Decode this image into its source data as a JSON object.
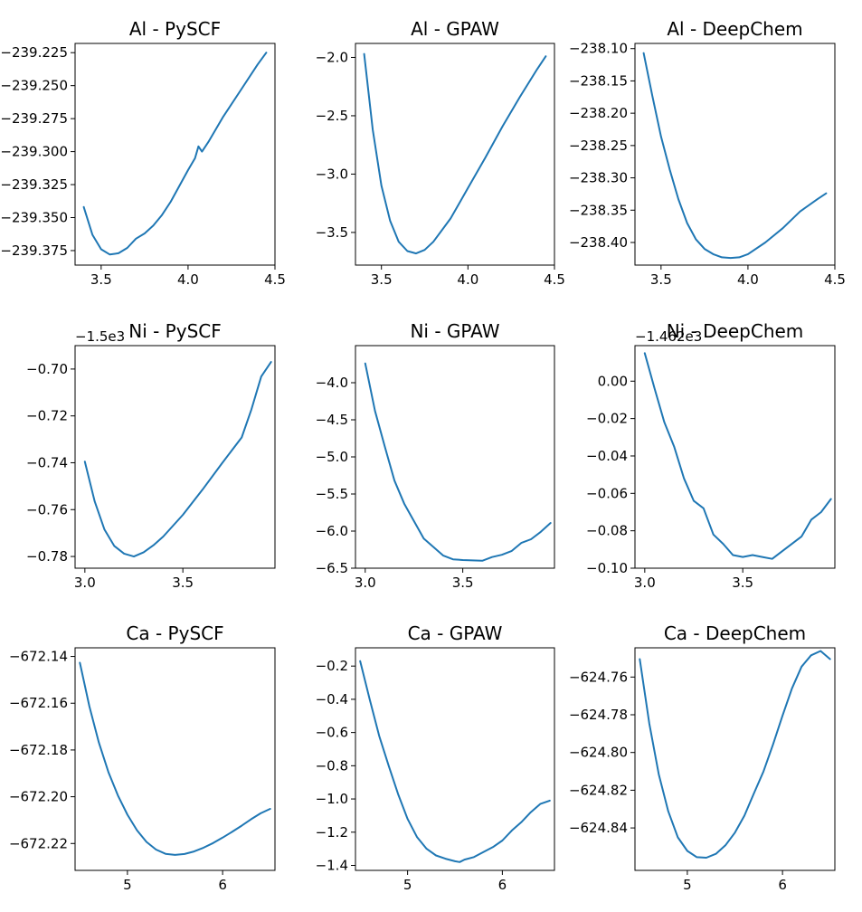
{
  "chart_data": [
    {
      "type": "line",
      "title": "Al - PySCF",
      "offset_text": "",
      "xlim": [
        3.35,
        4.5
      ],
      "ylim": [
        -239.386,
        -239.218
      ],
      "xticks": [
        3.5,
        4.0,
        4.5
      ],
      "xtick_labels": [
        "3.5",
        "4.0",
        "4.5"
      ],
      "yticks": [
        -239.225,
        -239.25,
        -239.275,
        -239.3,
        -239.325,
        -239.35,
        -239.375
      ],
      "ytick_labels": [
        "−239.225",
        "−239.250",
        "−239.275",
        "−239.300",
        "−239.325",
        "−239.350",
        "−239.375"
      ],
      "series": [
        {
          "name": "Al - PySCF",
          "x": [
            3.4,
            3.45,
            3.5,
            3.55,
            3.6,
            3.65,
            3.7,
            3.75,
            3.8,
            3.85,
            3.9,
            3.95,
            4.0,
            4.04,
            4.06,
            4.08,
            4.12,
            4.2,
            4.3,
            4.4,
            4.45
          ],
          "y": [
            -239.342,
            -239.363,
            -239.374,
            -239.378,
            -239.377,
            -239.373,
            -239.366,
            -239.362,
            -239.356,
            -239.348,
            -239.338,
            -239.326,
            -239.314,
            -239.305,
            -239.296,
            -239.3,
            -239.292,
            -239.274,
            -239.254,
            -239.234,
            -239.225
          ]
        }
      ]
    },
    {
      "type": "line",
      "title": "Al - GPAW",
      "offset_text": "",
      "xlim": [
        3.35,
        4.5
      ],
      "ylim": [
        -3.78,
        -1.88
      ],
      "xticks": [
        3.5,
        4.0,
        4.5
      ],
      "xtick_labels": [
        "3.5",
        "4.0",
        "4.5"
      ],
      "yticks": [
        -2.0,
        -2.5,
        -3.0,
        -3.5
      ],
      "ytick_labels": [
        "−2.0",
        "−2.5",
        "−3.0",
        "−3.5"
      ],
      "series": [
        {
          "name": "Al - GPAW",
          "x": [
            3.4,
            3.45,
            3.5,
            3.55,
            3.6,
            3.65,
            3.7,
            3.75,
            3.8,
            3.9,
            4.0,
            4.1,
            4.2,
            4.3,
            4.4,
            4.45
          ],
          "y": [
            -1.97,
            -2.62,
            -3.1,
            -3.4,
            -3.58,
            -3.66,
            -3.68,
            -3.65,
            -3.58,
            -3.38,
            -3.12,
            -2.86,
            -2.59,
            -2.34,
            -2.1,
            -1.99
          ]
        }
      ]
    },
    {
      "type": "line",
      "title": "Al - DeepChem",
      "offset_text": "",
      "xlim": [
        3.35,
        4.5
      ],
      "ylim": [
        -238.435,
        -238.092
      ],
      "xticks": [
        3.5,
        4.0,
        4.5
      ],
      "xtick_labels": [
        "3.5",
        "4.0",
        "4.5"
      ],
      "yticks": [
        -238.1,
        -238.15,
        -238.2,
        -238.25,
        -238.3,
        -238.35,
        -238.4
      ],
      "ytick_labels": [
        "−238.10",
        "−238.15",
        "−238.20",
        "−238.25",
        "−238.30",
        "−238.35",
        "−238.40"
      ],
      "series": [
        {
          "name": "Al - DeepChem",
          "x": [
            3.4,
            3.45,
            3.5,
            3.55,
            3.6,
            3.65,
            3.7,
            3.75,
            3.8,
            3.85,
            3.9,
            3.95,
            4.0,
            4.1,
            4.2,
            4.3,
            4.4,
            4.45
          ],
          "y": [
            -238.107,
            -238.173,
            -238.236,
            -238.287,
            -238.333,
            -238.37,
            -238.395,
            -238.41,
            -238.418,
            -238.423,
            -238.424,
            -238.423,
            -238.418,
            -238.4,
            -238.378,
            -238.352,
            -238.333,
            -238.324
          ]
        }
      ]
    },
    {
      "type": "line",
      "title": "Ni - PySCF",
      "offset_text": "−1.5e3",
      "xlim": [
        2.95,
        3.97
      ],
      "ylim": [
        -0.785,
        -0.69
      ],
      "xticks": [
        3.0,
        3.5
      ],
      "xtick_labels": [
        "3.0",
        "3.5"
      ],
      "yticks": [
        -0.7,
        -0.72,
        -0.74,
        -0.76,
        -0.78
      ],
      "ytick_labels": [
        "−0.70",
        "−0.72",
        "−0.74",
        "−0.76",
        "−0.78"
      ],
      "series": [
        {
          "name": "Ni - PySCF",
          "x": [
            3.0,
            3.05,
            3.1,
            3.15,
            3.2,
            3.25,
            3.3,
            3.35,
            3.4,
            3.5,
            3.6,
            3.7,
            3.8,
            3.85,
            3.9,
            3.95
          ],
          "y": [
            -0.7395,
            -0.7565,
            -0.7685,
            -0.7755,
            -0.7788,
            -0.78,
            -0.7782,
            -0.7752,
            -0.7715,
            -0.7622,
            -0.7515,
            -0.7402,
            -0.7292,
            -0.7172,
            -0.7032,
            -0.697
          ]
        }
      ]
    },
    {
      "type": "line",
      "title": "Ni - GPAW",
      "offset_text": "",
      "xlim": [
        2.95,
        3.97
      ],
      "ylim": [
        -6.5,
        -3.5
      ],
      "xticks": [
        3.0,
        3.5
      ],
      "xtick_labels": [
        "3.0",
        "3.5"
      ],
      "yticks": [
        -4.0,
        -4.5,
        -5.0,
        -5.5,
        -6.0,
        -6.5
      ],
      "ytick_labels": [
        "−4.0",
        "−4.5",
        "−5.0",
        "−5.5",
        "−6.0",
        "−6.5"
      ],
      "series": [
        {
          "name": "Ni - GPAW",
          "x": [
            3.0,
            3.05,
            3.1,
            3.15,
            3.2,
            3.3,
            3.4,
            3.45,
            3.5,
            3.6,
            3.65,
            3.7,
            3.75,
            3.8,
            3.85,
            3.9,
            3.95
          ],
          "y": [
            -3.74,
            -4.38,
            -4.86,
            -5.32,
            -5.63,
            -6.1,
            -6.33,
            -6.38,
            -6.39,
            -6.4,
            -6.35,
            -6.32,
            -6.27,
            -6.16,
            -6.11,
            -6.01,
            -5.89
          ]
        }
      ]
    },
    {
      "type": "line",
      "title": "Ni - DeepChem",
      "offset_text": "−1.462e3",
      "xlim": [
        2.95,
        3.97
      ],
      "ylim": [
        -0.1,
        0.019
      ],
      "xticks": [
        3.0,
        3.5
      ],
      "xtick_labels": [
        "3.0",
        "3.5"
      ],
      "yticks": [
        0.0,
        -0.02,
        -0.04,
        -0.06,
        -0.08,
        -0.1
      ],
      "ytick_labels": [
        "0.00",
        "−0.02",
        "−0.04",
        "−0.06",
        "−0.08",
        "−0.10"
      ],
      "series": [
        {
          "name": "Ni - DeepChem",
          "x": [
            3.0,
            3.05,
            3.1,
            3.15,
            3.2,
            3.25,
            3.3,
            3.35,
            3.4,
            3.45,
            3.5,
            3.55,
            3.6,
            3.65,
            3.7,
            3.8,
            3.85,
            3.9,
            3.95
          ],
          "y": [
            0.015,
            -0.004,
            -0.022,
            -0.035,
            -0.052,
            -0.064,
            -0.068,
            -0.082,
            -0.087,
            -0.093,
            -0.094,
            -0.093,
            -0.094,
            -0.095,
            -0.091,
            -0.083,
            -0.074,
            -0.07,
            -0.063
          ]
        }
      ]
    },
    {
      "type": "line",
      "title": "Ca - PySCF",
      "offset_text": "",
      "xlim": [
        4.45,
        6.55
      ],
      "ylim": [
        -672.2315,
        -672.1363
      ],
      "xticks": [
        5,
        6
      ],
      "xtick_labels": [
        "5",
        "6"
      ],
      "yticks": [
        -672.14,
        -672.16,
        -672.18,
        -672.2,
        -672.22
      ],
      "ytick_labels": [
        "−672.14",
        "−672.16",
        "−672.18",
        "−672.20",
        "−672.22"
      ],
      "series": [
        {
          "name": "Ca - PySCF",
          "x": [
            4.5,
            4.6,
            4.7,
            4.8,
            4.9,
            5.0,
            5.1,
            5.2,
            5.3,
            5.4,
            5.5,
            5.6,
            5.7,
            5.8,
            5.9,
            6.0,
            6.1,
            6.2,
            6.3,
            6.4,
            6.5
          ],
          "y": [
            -672.1427,
            -672.1613,
            -672.1768,
            -672.1894,
            -672.1995,
            -672.2077,
            -672.2143,
            -672.2193,
            -672.2226,
            -672.2244,
            -672.2249,
            -672.2245,
            -672.2234,
            -672.2218,
            -672.2198,
            -672.2175,
            -672.215,
            -672.2124,
            -672.2096,
            -672.2071,
            -672.2052
          ]
        }
      ]
    },
    {
      "type": "line",
      "title": "Ca - GPAW",
      "offset_text": "",
      "xlim": [
        4.45,
        6.55
      ],
      "ylim": [
        -1.43,
        -0.09
      ],
      "xticks": [
        5,
        6
      ],
      "xtick_labels": [
        "5",
        "6"
      ],
      "yticks": [
        -0.2,
        -0.4,
        -0.6,
        -0.8,
        -1.0,
        -1.2,
        -1.4
      ],
      "ytick_labels": [
        "−0.2",
        "−0.4",
        "−0.6",
        "−0.8",
        "−1.0",
        "−1.2",
        "−1.4"
      ],
      "series": [
        {
          "name": "Ca - GPAW",
          "x": [
            4.5,
            4.6,
            4.7,
            4.8,
            4.9,
            5.0,
            5.1,
            5.2,
            5.3,
            5.4,
            5.5,
            5.55,
            5.6,
            5.7,
            5.8,
            5.9,
            6.0,
            6.1,
            6.2,
            6.3,
            6.4,
            6.5
          ],
          "y": [
            -0.17,
            -0.4,
            -0.62,
            -0.8,
            -0.97,
            -1.12,
            -1.23,
            -1.3,
            -1.34,
            -1.36,
            -1.375,
            -1.38,
            -1.365,
            -1.35,
            -1.32,
            -1.29,
            -1.25,
            -1.19,
            -1.14,
            -1.08,
            -1.03,
            -1.01
          ]
        }
      ]
    },
    {
      "type": "line",
      "title": "Ca - DeepChem",
      "offset_text": "",
      "xlim": [
        4.45,
        6.55
      ],
      "ylim": [
        -624.8625,
        -624.7445
      ],
      "xticks": [
        5,
        6
      ],
      "xtick_labels": [
        "5",
        "6"
      ],
      "yticks": [
        -624.76,
        -624.78,
        -624.8,
        -624.82,
        -624.84
      ],
      "ytick_labels": [
        "−624.76",
        "−624.78",
        "−624.80",
        "−624.82",
        "−624.84"
      ],
      "series": [
        {
          "name": "Ca - DeepChem",
          "x": [
            4.5,
            4.6,
            4.7,
            4.8,
            4.9,
            5.0,
            5.1,
            5.2,
            5.3,
            5.4,
            5.5,
            5.6,
            5.7,
            5.8,
            5.9,
            6.0,
            6.1,
            6.2,
            6.3,
            6.4,
            6.5
          ],
          "y": [
            -624.7505,
            -624.7845,
            -624.8115,
            -624.8312,
            -624.845,
            -624.8522,
            -624.8555,
            -624.8558,
            -624.8537,
            -624.8492,
            -624.8425,
            -624.8335,
            -624.8217,
            -624.81,
            -624.7958,
            -624.7805,
            -624.766,
            -624.7545,
            -624.7485,
            -624.7462,
            -624.7505
          ]
        }
      ]
    }
  ]
}
